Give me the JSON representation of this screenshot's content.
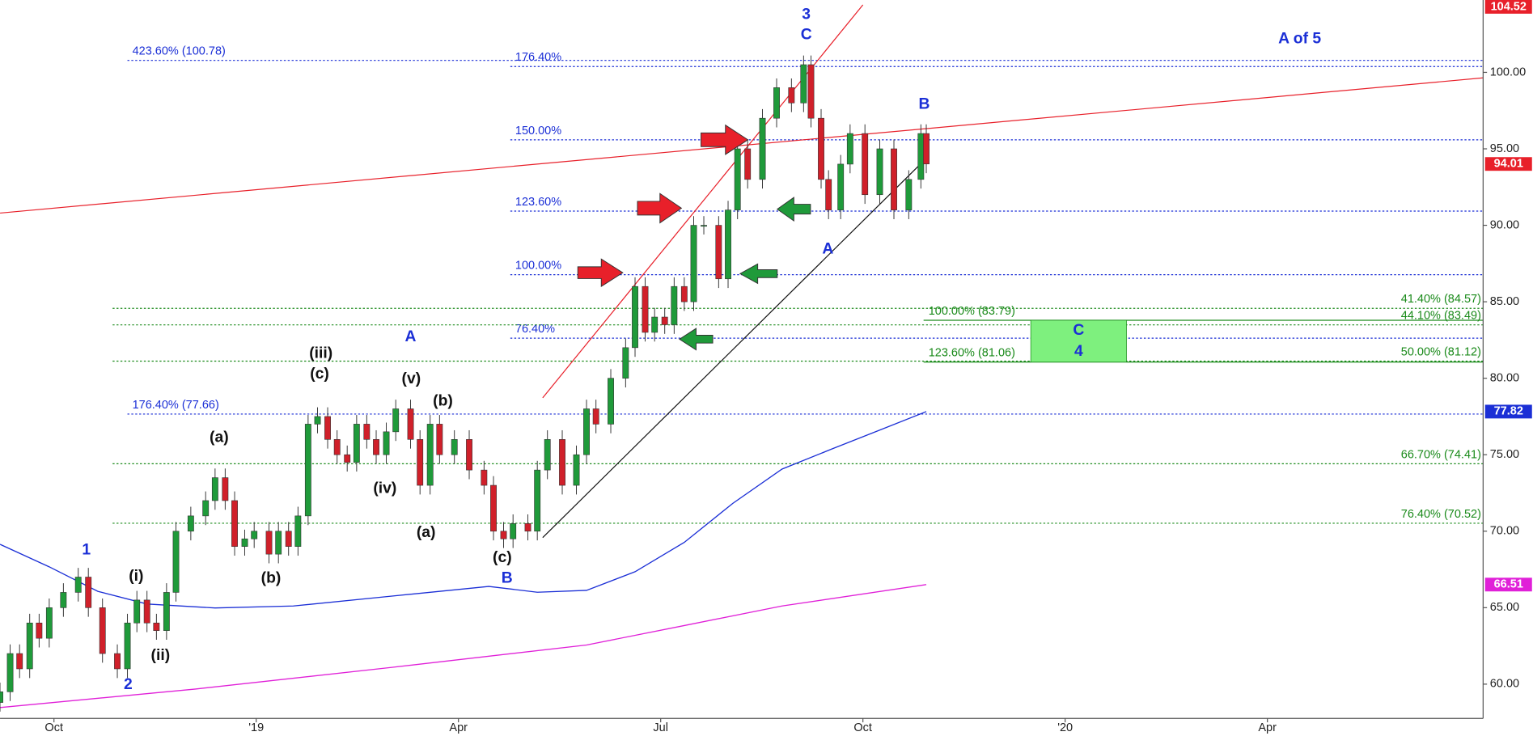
{
  "chart_data": {
    "type": "candlestick",
    "xlim": [
      0.2,
      22.2
    ],
    "ylim": [
      57.76,
      104.73
    ],
    "xticks": [
      {
        "value": 1,
        "label": "Oct"
      },
      {
        "value": 4,
        "label": "'19"
      },
      {
        "value": 7,
        "label": "Apr"
      },
      {
        "value": 10,
        "label": "Jul"
      },
      {
        "value": 13,
        "label": "Oct"
      },
      {
        "value": 16,
        "label": "'20"
      },
      {
        "value": 19,
        "label": "Apr"
      }
    ],
    "yticks": [
      {
        "value": 60,
        "label": "60.00"
      },
      {
        "value": 65,
        "label": "65.00"
      },
      {
        "value": 70,
        "label": "70.00"
      },
      {
        "value": 75,
        "label": "75.00"
      },
      {
        "value": 80,
        "label": "80.00"
      },
      {
        "value": 85,
        "label": "85.00"
      },
      {
        "value": 90,
        "label": "90.00"
      },
      {
        "value": 95,
        "label": "95.00"
      },
      {
        "value": 100,
        "label": "100.00"
      }
    ],
    "up_color": "#1f9a3a",
    "down_color": "#d0202a",
    "candles": {
      "x": [
        0.2,
        0.35,
        0.49,
        0.64,
        0.78,
        0.93,
        1.14,
        1.36,
        1.51,
        1.72,
        1.94,
        2.09,
        2.23,
        2.38,
        2.52,
        2.67,
        2.81,
        3.03,
        3.25,
        3.39,
        3.54,
        3.68,
        3.83,
        3.97,
        4.19,
        4.33,
        4.48,
        4.62,
        4.77,
        4.91,
        5.06,
        5.2,
        5.35,
        5.49,
        5.64,
        5.78,
        5.93,
        6.07,
        6.29,
        6.43,
        6.58,
        6.72,
        6.94,
        7.16,
        7.38,
        7.52,
        7.67,
        7.81,
        8.03,
        8.17,
        8.32,
        8.54,
        8.75,
        8.9,
        9.04,
        9.26,
        9.48,
        9.62,
        9.77,
        9.91,
        10.06,
        10.2,
        10.35,
        10.49,
        10.64,
        10.86,
        11.0,
        11.14,
        11.29,
        11.51,
        11.72,
        11.94,
        12.12,
        12.23,
        12.38,
        12.49,
        12.67,
        12.81,
        13.03,
        13.25,
        13.46,
        13.68,
        13.86,
        13.94
      ],
      "open": [
        58.8,
        59.5,
        62,
        61,
        64,
        63,
        65,
        66,
        67,
        65,
        62,
        61,
        64,
        65.5,
        64,
        63.5,
        66,
        70,
        71,
        72,
        73.5,
        72,
        69,
        69.5,
        70,
        68.5,
        70,
        69,
        71,
        77,
        77.5,
        76,
        75,
        74.5,
        77,
        76,
        75,
        76.5,
        78,
        76,
        73,
        77,
        75,
        76,
        74,
        73,
        70,
        69.5,
        70.5,
        70,
        74,
        76,
        73,
        75,
        78,
        77,
        80,
        82,
        86,
        83,
        84,
        83.5,
        86,
        85,
        90,
        90,
        86.5,
        91,
        95,
        93,
        97,
        99,
        98,
        100.5,
        97,
        93,
        91,
        94,
        96,
        92,
        95,
        91,
        93,
        96
      ],
      "high": [
        60.1,
        62.6,
        62.6,
        64.6,
        64.6,
        65.6,
        66.6,
        67.6,
        67.6,
        65.6,
        62.6,
        64.6,
        66.1,
        66.1,
        64.6,
        66.6,
        70.6,
        71.6,
        72.6,
        74.1,
        74.1,
        72.6,
        70.1,
        70.6,
        70.6,
        70.6,
        70.6,
        71.6,
        77.6,
        78.1,
        78.1,
        76.6,
        75.6,
        77.6,
        77.6,
        76.6,
        77.1,
        78.6,
        78.6,
        76.6,
        77.6,
        77.6,
        76.6,
        76.6,
        74.6,
        73.6,
        70.6,
        71.1,
        71.1,
        74.6,
        76.6,
        76.6,
        75.6,
        78.6,
        78.6,
        80.6,
        82.6,
        86.6,
        86.6,
        84.6,
        84.6,
        86.6,
        86.6,
        90.6,
        90.6,
        90.6,
        91.6,
        95.6,
        95.6,
        97.6,
        99.6,
        99.6,
        101.1,
        101.1,
        97.6,
        93.6,
        94.6,
        96.6,
        96.6,
        95.6,
        95.6,
        93.6,
        96.6,
        96.6
      ],
      "low": [
        58.2,
        58.9,
        60.4,
        60.4,
        62.4,
        62.4,
        64.4,
        65.4,
        64.4,
        61.4,
        60.4,
        60.4,
        63.4,
        63.4,
        62.9,
        62.9,
        65.4,
        69.4,
        70.4,
        71.4,
        71.4,
        68.4,
        68.4,
        68.9,
        67.9,
        67.9,
        68.4,
        68.4,
        70.4,
        76.4,
        75.4,
        74.4,
        73.9,
        73.9,
        75.4,
        74.4,
        74.4,
        75.9,
        75.4,
        72.4,
        72.4,
        74.4,
        74.4,
        73.4,
        72.4,
        69.4,
        68.9,
        68.9,
        69.4,
        69.4,
        73.4,
        72.4,
        72.4,
        74.4,
        76.4,
        76.4,
        79.4,
        81.4,
        82.4,
        82.4,
        82.9,
        82.9,
        84.4,
        84.4,
        89.4,
        85.9,
        85.9,
        90.4,
        92.4,
        92.4,
        96.4,
        97.4,
        97.4,
        96.4,
        92.4,
        90.4,
        90.4,
        93.4,
        91.4,
        91.4,
        90.4,
        90.4,
        92.4,
        93.41
      ],
      "close": [
        59.5,
        62,
        61,
        64,
        63,
        65,
        66,
        67,
        65,
        62,
        61,
        64,
        65.5,
        64,
        63.5,
        66,
        70,
        71,
        72,
        73.5,
        72,
        69,
        69.5,
        70,
        68.5,
        70,
        69,
        71,
        77,
        77.5,
        76,
        75,
        74.5,
        77,
        76,
        75,
        76.5,
        78,
        76,
        73,
        77,
        75,
        76,
        74,
        73,
        70,
        69.5,
        70.5,
        70,
        74,
        76,
        73,
        75,
        78,
        77,
        80,
        82,
        86,
        83,
        84,
        83.5,
        86,
        85,
        90,
        90,
        86.5,
        91,
        95,
        93,
        97,
        99,
        98,
        100.5,
        97,
        93,
        91,
        94,
        96,
        92,
        95,
        91,
        93,
        96,
        94.01
      ]
    },
    "overlays": [
      {
        "color": "#1b2fd6",
        "x": [
          0.2,
          0.93,
          1.65,
          2.38,
          3.39,
          4.55,
          6.0,
          7.45,
          8.17,
          8.9,
          9.62,
          10.35,
          11.07,
          11.8,
          12.52,
          13.25,
          13.94
        ],
        "values": [
          69.14,
          67.67,
          66.07,
          65.24,
          64.98,
          65.11,
          65.75,
          66.39,
          66.01,
          66.13,
          67.35,
          69.27,
          71.82,
          74.06,
          75.34,
          76.61,
          77.82
        ]
      },
      {
        "color": "#e020d8",
        "x": [
          0.2,
          3.1,
          6.0,
          8.9,
          10.35,
          11.8,
          13.94
        ],
        "values": [
          58.47,
          59.68,
          61.09,
          62.56,
          63.83,
          65.11,
          66.51
        ]
      }
    ],
    "trendlines": [
      {
        "color": "#e8202a",
        "x": [
          0.2,
          22.2
        ],
        "y": [
          90.8,
          99.64
        ]
      },
      {
        "color": "#e8202a",
        "x": [
          8.25,
          13.0
        ],
        "y": [
          78.72,
          104.41
        ]
      },
      {
        "color": "#111111",
        "x": [
          8.25,
          13.94
        ],
        "y": [
          69.58,
          94.38
        ]
      }
    ],
    "levels": [
      {
        "value": 100.78,
        "label": "423.60% (100.78)",
        "x_start": 2.09,
        "color": "#1b2fd6",
        "style": "dotted",
        "label_side": "left"
      },
      {
        "value": 100.38,
        "label": "176.40%",
        "x_start": 7.77,
        "color": "#1b2fd6",
        "style": "dotted",
        "label_side": "left"
      },
      {
        "value": 95.59,
        "label": "150.00%",
        "x_start": 7.77,
        "color": "#1b2fd6",
        "style": "dotted",
        "label_side": "left"
      },
      {
        "value": 90.93,
        "label": "123.60%",
        "x_start": 7.77,
        "color": "#1b2fd6",
        "style": "dotted",
        "label_side": "left"
      },
      {
        "value": 86.77,
        "label": "100.00%",
        "x_start": 7.77,
        "color": "#1b2fd6",
        "style": "dotted",
        "label_side": "left"
      },
      {
        "value": 82.62,
        "label": "76.40%",
        "x_start": 7.77,
        "color": "#1b2fd6",
        "style": "dotted",
        "label_side": "left"
      },
      {
        "value": 77.66,
        "label": "176.40% (77.66)",
        "x_start": 2.09,
        "color": "#1b2fd6",
        "style": "dotted",
        "label_side": "left"
      },
      {
        "value": 84.57,
        "label": "41.40% (84.57)",
        "x_start": 1.87,
        "color": "#1a8a1a",
        "style": "dotted",
        "label_side": "right"
      },
      {
        "value": 83.49,
        "label": "44.10% (83.49)",
        "x_start": 1.87,
        "color": "#1a8a1a",
        "style": "dotted",
        "label_side": "right"
      },
      {
        "value": 81.12,
        "label": "50.00% (81.12)",
        "x_start": 1.87,
        "color": "#1a8a1a",
        "style": "dotted",
        "label_side": "right"
      },
      {
        "value": 74.41,
        "label": "66.70% (74.41)",
        "x_start": 1.87,
        "color": "#1a8a1a",
        "style": "dotted",
        "label_side": "right"
      },
      {
        "value": 70.52,
        "label": "76.40% (70.52)",
        "x_start": 1.87,
        "color": "#1a8a1a",
        "style": "dotted",
        "label_side": "right"
      },
      {
        "value": 83.79,
        "label": "100.00% (83.79)",
        "x_start": 13.9,
        "color": "#1a8a1a",
        "style": "solid",
        "label_side": "left"
      },
      {
        "value": 81.06,
        "label": "123.60% (81.06)",
        "x_start": 13.9,
        "color": "#1a8a1a",
        "style": "solid",
        "label_side": "left"
      }
    ],
    "zone": {
      "x": [
        15.49,
        16.91
      ],
      "y": [
        81.06,
        83.79
      ],
      "color": "#7ef07e",
      "labels": [
        "C",
        "4"
      ],
      "label_color": "#1b2fd6"
    },
    "annotations": [
      {
        "text": "3",
        "x": 12.16,
        "y": 103.77,
        "color": "#1b2fd6"
      },
      {
        "text": "C",
        "x": 12.16,
        "y": 102.43,
        "color": "#1b2fd6"
      },
      {
        "text": "A of 5",
        "x": 19.48,
        "y": 102.17,
        "color": "#1b2fd6"
      },
      {
        "text": "B",
        "x": 13.91,
        "y": 97.89,
        "color": "#1b2fd6"
      },
      {
        "text": "A",
        "x": 12.48,
        "y": 88.43,
        "color": "#1b2fd6"
      },
      {
        "text": "A",
        "x": 6.29,
        "y": 82.68,
        "color": "#1b2fd6"
      },
      {
        "text": "(iii)",
        "x": 4.96,
        "y": 81.6,
        "color": "#111111"
      },
      {
        "text": "(c)",
        "x": 4.94,
        "y": 80.26,
        "color": "#111111"
      },
      {
        "text": "(v)",
        "x": 6.3,
        "y": 79.94,
        "color": "#111111"
      },
      {
        "text": "(b)",
        "x": 6.77,
        "y": 78.47,
        "color": "#111111"
      },
      {
        "text": "(a)",
        "x": 3.45,
        "y": 76.1,
        "color": "#111111"
      },
      {
        "text": "(iv)",
        "x": 5.91,
        "y": 72.78,
        "color": "#111111"
      },
      {
        "text": "(a)",
        "x": 6.52,
        "y": 69.9,
        "color": "#111111"
      },
      {
        "text": "(c)",
        "x": 7.65,
        "y": 68.24,
        "color": "#111111"
      },
      {
        "text": "B",
        "x": 7.72,
        "y": 66.9,
        "color": "#1b2fd6"
      },
      {
        "text": "(b)",
        "x": 4.22,
        "y": 66.9,
        "color": "#111111"
      },
      {
        "text": "1",
        "x": 1.48,
        "y": 68.75,
        "color": "#1b2fd6"
      },
      {
        "text": "(i)",
        "x": 2.22,
        "y": 67.03,
        "color": "#111111"
      },
      {
        "text": "(ii)",
        "x": 2.58,
        "y": 61.85,
        "color": "#111111"
      },
      {
        "text": "2",
        "x": 2.1,
        "y": 59.94,
        "color": "#1b2fd6"
      }
    ],
    "price_tags": [
      {
        "value": 104.52,
        "color": "#e8202a"
      },
      {
        "value": 94.01,
        "color": "#e8202a"
      },
      {
        "value": 77.82,
        "color": "#1b2fd6"
      },
      {
        "value": 66.51,
        "color": "#e020d8"
      }
    ]
  }
}
